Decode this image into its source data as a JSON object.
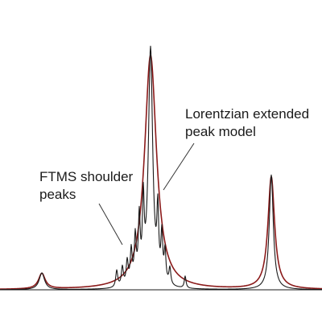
{
  "chart_data": {
    "type": "line",
    "title": "",
    "xlabel": "",
    "ylabel": "",
    "axes_visible": false,
    "grid": false,
    "baseline_visible": true,
    "xlim": [
      0,
      400
    ],
    "ylim": [
      0,
      1
    ],
    "series": [
      {
        "role": "measured",
        "color": "#1a1a1a",
        "peaks": [
          {
            "center": 52,
            "height": 0.07,
            "width": 4.0
          },
          {
            "center": 145,
            "height": 0.07,
            "width": 1.5
          },
          {
            "center": 152,
            "height": 0.08,
            "width": 1.5
          },
          {
            "center": 158,
            "height": 0.1,
            "width": 1.5
          },
          {
            "center": 163,
            "height": 0.14,
            "width": 1.4
          },
          {
            "center": 168,
            "height": 0.19,
            "width": 1.4
          },
          {
            "center": 173,
            "height": 0.26,
            "width": 1.4
          },
          {
            "center": 178,
            "height": 0.31,
            "width": 1.3
          },
          {
            "center": 187,
            "height": 1.0,
            "width": 3.2
          },
          {
            "center": 196,
            "height": 0.27,
            "width": 1.3
          },
          {
            "center": 201,
            "height": 0.19,
            "width": 1.3
          },
          {
            "center": 205,
            "height": 0.13,
            "width": 1.3
          },
          {
            "center": 211,
            "height": 0.07,
            "width": 1.4
          },
          {
            "center": 230,
            "height": 0.05,
            "width": 1.3
          },
          {
            "center": 337,
            "height": 0.48,
            "width": 3.0
          }
        ]
      },
      {
        "role": "model",
        "color": "#8b1a1a",
        "peaks": [
          {
            "center": 52,
            "height": 0.065,
            "width": 5.0
          },
          {
            "center": 187,
            "height": 0.98,
            "width": 9.0
          },
          {
            "center": 337,
            "height": 0.47,
            "width": 5.0
          }
        ]
      }
    ],
    "annotations": [
      {
        "lines": [
          "Lorentzian extended",
          "peak model"
        ]
      },
      {
        "lines": [
          "FTMS shoulder",
          "peaks"
        ]
      }
    ]
  }
}
